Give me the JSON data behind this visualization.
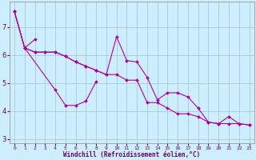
{
  "xlabel": "Windchill (Refroidissement éolien,°C)",
  "background_color": "#cceeff",
  "grid_color": "#aacccc",
  "line_color": "#aa00aa",
  "xlim": [
    -0.5,
    23.5
  ],
  "ylim": [
    2.85,
    7.9
  ],
  "xticks": [
    0,
    1,
    2,
    3,
    4,
    5,
    6,
    7,
    8,
    9,
    10,
    11,
    12,
    13,
    14,
    15,
    16,
    17,
    18,
    19,
    20,
    21,
    22,
    23
  ],
  "yticks": [
    3,
    4,
    5,
    6,
    7
  ],
  "series": [
    {
      "x": [
        0,
        1,
        2
      ],
      "y": [
        7.55,
        6.25,
        6.55
      ]
    },
    {
      "x": [
        1,
        4,
        5,
        6,
        7,
        8
      ],
      "y": [
        6.25,
        4.75,
        4.2,
        4.2,
        4.35,
        5.05
      ]
    },
    {
      "x": [
        0,
        1,
        2,
        3,
        4,
        5,
        6,
        7,
        8,
        9,
        10,
        11,
        12,
        13,
        14,
        15,
        16,
        17,
        18,
        19,
        20,
        21,
        22,
        23
      ],
      "y": [
        7.55,
        6.25,
        6.1,
        6.1,
        6.1,
        5.95,
        5.75,
        5.6,
        5.45,
        5.3,
        6.65,
        5.8,
        5.75,
        5.2,
        4.4,
        4.65,
        4.65,
        4.5,
        4.1,
        3.6,
        3.55,
        3.8,
        3.55,
        3.5
      ]
    },
    {
      "x": [
        0,
        1,
        2,
        3,
        4,
        5,
        6,
        7,
        8,
        9,
        10,
        11,
        12,
        13,
        14,
        15,
        16,
        17,
        18,
        19,
        20,
        21,
        22,
        23
      ],
      "y": [
        7.55,
        6.25,
        6.1,
        6.1,
        6.1,
        5.95,
        5.75,
        5.6,
        5.45,
        5.3,
        5.3,
        5.1,
        5.1,
        4.3,
        4.3,
        4.1,
        3.9,
        3.9,
        3.8,
        3.6,
        3.55,
        3.55,
        3.55,
        3.5
      ]
    }
  ]
}
